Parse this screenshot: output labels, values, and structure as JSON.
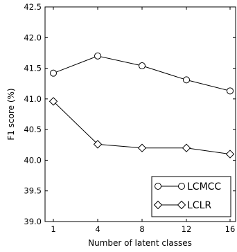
{
  "chart_data": {
    "type": "line",
    "x": [
      1,
      4,
      8,
      12,
      16
    ],
    "xticks": [
      "1",
      "4",
      "8",
      "12",
      "16"
    ],
    "yticks": [
      "39.0",
      "39.5",
      "40.0",
      "40.5",
      "41.0",
      "41.5",
      "42.0",
      "42.5"
    ],
    "ylim": [
      39.0,
      42.5
    ],
    "xlabel": "Number of latent classes",
    "ylabel": "F1 score (%)",
    "grid": false,
    "legend_position": "bottom-right",
    "series": [
      {
        "name": "LCMCC",
        "marker": "circle",
        "values": [
          41.42,
          41.7,
          41.54,
          41.31,
          41.13
        ]
      },
      {
        "name": "LCLR",
        "marker": "diamond",
        "values": [
          40.96,
          40.26,
          40.2,
          40.2,
          40.1
        ]
      }
    ]
  }
}
